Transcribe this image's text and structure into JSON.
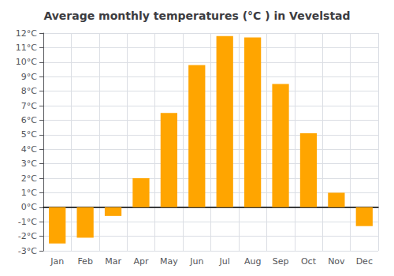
{
  "chart_data": {
    "type": "bar",
    "title": "Average monthly temperatures (°C ) in Vevelstad",
    "categories": [
      "Jan",
      "Feb",
      "Mar",
      "Apr",
      "May",
      "Jun",
      "Jul",
      "Aug",
      "Sep",
      "Oct",
      "Nov",
      "Dec"
    ],
    "values": [
      -2.5,
      -2.1,
      -0.6,
      2.0,
      6.5,
      9.8,
      11.8,
      11.7,
      8.5,
      5.1,
      1.0,
      -1.3
    ],
    "color": "#FFA500",
    "ylim": [
      -3,
      12
    ],
    "yticks": [
      {
        "value": -3,
        "label": "-3°C"
      },
      {
        "value": -2,
        "label": "-2°C"
      },
      {
        "value": -1,
        "label": "-1°C"
      },
      {
        "value": 0,
        "label": "0°C"
      },
      {
        "value": 1,
        "label": "1°C"
      },
      {
        "value": 2,
        "label": "2°C"
      },
      {
        "value": 3,
        "label": "3°C"
      },
      {
        "value": 4,
        "label": "4°C"
      },
      {
        "value": 5,
        "label": "5°C"
      },
      {
        "value": 6,
        "label": "6°C"
      },
      {
        "value": 7,
        "label": "7°C"
      },
      {
        "value": 8,
        "label": "8°C"
      },
      {
        "value": 9,
        "label": "9°C"
      },
      {
        "value": 10,
        "label": "10°C"
      },
      {
        "value": 11,
        "label": "11°C"
      },
      {
        "value": 12,
        "label": "12°C"
      }
    ],
    "grid": true
  }
}
